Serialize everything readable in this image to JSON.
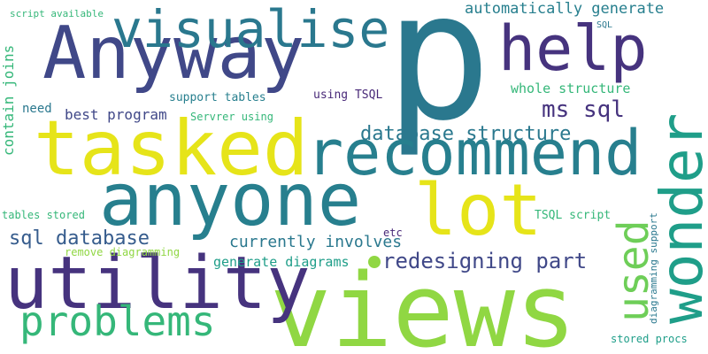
{
  "colors": {
    "background": "#ffffff",
    "navy": "#404888",
    "indigo": "#46337e",
    "purple": "#482878",
    "steel": "#365c8d",
    "teal": "#277f8e",
    "teal_dark": "#2a788e",
    "sea": "#1f9e89",
    "green": "#35b779",
    "lime": "#6ece58",
    "yellow_green": "#90d743",
    "yellow": "#e6e419"
  },
  "words": [
    {
      "key": "p",
      "text": "p"
    },
    {
      "key": "views",
      "text": "views"
    },
    {
      "key": "anyone",
      "text": "anyone"
    },
    {
      "key": "recommend",
      "text": "recommend"
    },
    {
      "key": "tasked",
      "text": "tasked"
    },
    {
      "key": "anyway",
      "text": "Anyway"
    },
    {
      "key": "wonder",
      "text": "wonder"
    },
    {
      "key": "utility",
      "text": "utility"
    },
    {
      "key": "visualise",
      "text": "visualise"
    },
    {
      "key": "lot",
      "text": "lot"
    },
    {
      "key": "help",
      "text": "help"
    },
    {
      "key": "problems",
      "text": "problems"
    },
    {
      "key": "used",
      "text": "used"
    },
    {
      "key": "redesigning_part",
      "text": "redesigning part"
    },
    {
      "key": "database_structure",
      "text": "database structure"
    },
    {
      "key": "ms_sql",
      "text": "ms sql"
    },
    {
      "key": "sql_database",
      "text": "sql database"
    },
    {
      "key": "currently_involves",
      "text": "currently involves"
    },
    {
      "key": "automatically_generate",
      "text": "automatically generate"
    },
    {
      "key": "whole_structure",
      "text": "whole structure"
    },
    {
      "key": "best_program",
      "text": "best program"
    },
    {
      "key": "generate_diagrams",
      "text": "generate diagrams"
    },
    {
      "key": "contain_joins",
      "text": "contain joins"
    },
    {
      "key": "support_tables",
      "text": "support tables"
    },
    {
      "key": "using_tsql",
      "text": "using TSQL"
    },
    {
      "key": "servrer_using",
      "text": "Servrer using"
    },
    {
      "key": "need",
      "text": "need"
    },
    {
      "key": "etc",
      "text": "etc"
    },
    {
      "key": "tsql_script",
      "text": "TSQL script"
    },
    {
      "key": "tables_stored",
      "text": "tables stored"
    },
    {
      "key": "remove_diagramming",
      "text": "remove diagramming"
    },
    {
      "key": "diagramming_support",
      "text": "diagramming support"
    },
    {
      "key": "stored_procs",
      "text": "stored procs"
    },
    {
      "key": "script_available",
      "text": "script available"
    },
    {
      "key": "sql",
      "text": "SQL"
    }
  ]
}
